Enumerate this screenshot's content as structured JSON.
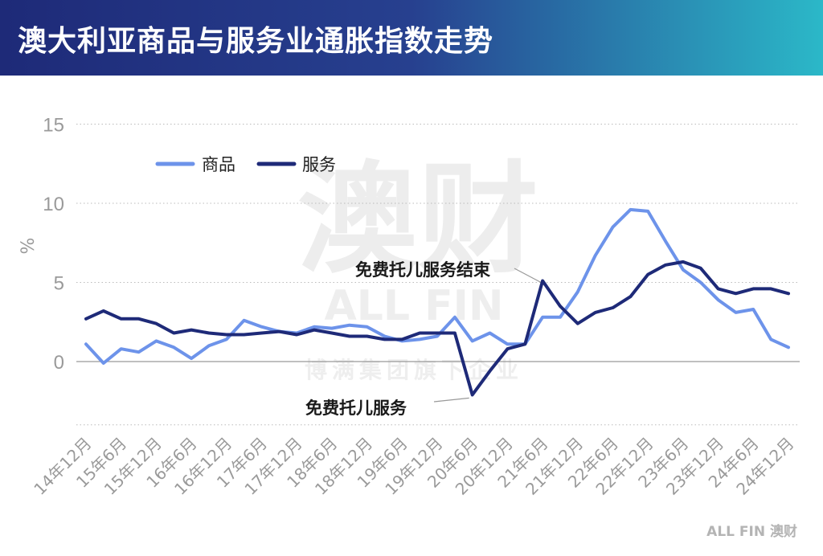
{
  "title": "澳大利亚商品与服务业通胀指数走势",
  "watermark": {
    "brand_cn": "澳财",
    "brand_en": "ALL FIN",
    "group": "博满集团旗下企业"
  },
  "footer_logo": "ALL FIN 澳财",
  "colors": {
    "goods": "#6d93ea",
    "services": "#1e2a78",
    "grid": "#bbbbbb",
    "zero_line": "#999999"
  },
  "chart_data": {
    "type": "line",
    "title": "澳大利亚商品与服务业通胀指数走势",
    "ylabel": "%",
    "xlabel": "",
    "ylim": [
      -4,
      15
    ],
    "yticks": [
      0,
      5,
      10,
      15
    ],
    "grid": true,
    "legend_position": "top-left",
    "x_tick_labels": [
      "14年12月",
      "15年6月",
      "15年12月",
      "16年6月",
      "16年12月",
      "17年6月",
      "17年12月",
      "18年6月",
      "18年12月",
      "19年6月",
      "19年12月",
      "20年6月",
      "20年12月",
      "21年6月",
      "21年12月",
      "22年6月",
      "22年12月",
      "23年6月",
      "23年12月",
      "24年6月",
      "24年12月"
    ],
    "x": [
      "14Q4",
      "15Q1",
      "15Q2",
      "15Q3",
      "15Q4",
      "16Q1",
      "16Q2",
      "16Q3",
      "16Q4",
      "17Q1",
      "17Q2",
      "17Q3",
      "17Q4",
      "18Q1",
      "18Q2",
      "18Q3",
      "18Q4",
      "19Q1",
      "19Q2",
      "19Q3",
      "19Q4",
      "20Q1",
      "20Q2",
      "20Q3",
      "20Q4",
      "21Q1",
      "21Q2",
      "21Q3",
      "21Q4",
      "22Q1",
      "22Q2",
      "22Q3",
      "22Q4",
      "23Q1",
      "23Q2",
      "23Q3",
      "23Q4",
      "24Q1",
      "24Q2",
      "24Q3",
      "24Q4"
    ],
    "series": [
      {
        "name": "商品",
        "values": [
          1.1,
          -0.1,
          0.8,
          0.6,
          1.3,
          0.9,
          0.2,
          1.0,
          1.4,
          2.6,
          2.2,
          1.9,
          1.8,
          2.2,
          2.1,
          2.3,
          2.2,
          1.6,
          1.3,
          1.4,
          1.6,
          2.8,
          1.3,
          1.8,
          1.1,
          1.1,
          2.8,
          2.8,
          4.4,
          6.7,
          8.5,
          9.6,
          9.5,
          7.6,
          5.8,
          5.0,
          3.9,
          3.1,
          3.3,
          1.4,
          0.9
        ]
      },
      {
        "name": "服务",
        "values": [
          2.7,
          3.2,
          2.7,
          2.7,
          2.4,
          1.8,
          2.0,
          1.8,
          1.7,
          1.7,
          1.8,
          1.9,
          1.7,
          2.0,
          1.8,
          1.6,
          1.6,
          1.4,
          1.4,
          1.8,
          1.8,
          1.8,
          -2.1,
          -0.6,
          0.8,
          1.1,
          5.1,
          3.5,
          2.4,
          3.1,
          3.4,
          4.1,
          5.5,
          6.1,
          6.3,
          5.9,
          4.6,
          4.3,
          4.6,
          4.6,
          4.3
        ]
      }
    ],
    "annotations": [
      {
        "text": "免费托儿服务结束",
        "x": "21Q2"
      },
      {
        "text": "免费托儿服务",
        "x": "20Q2"
      }
    ]
  }
}
